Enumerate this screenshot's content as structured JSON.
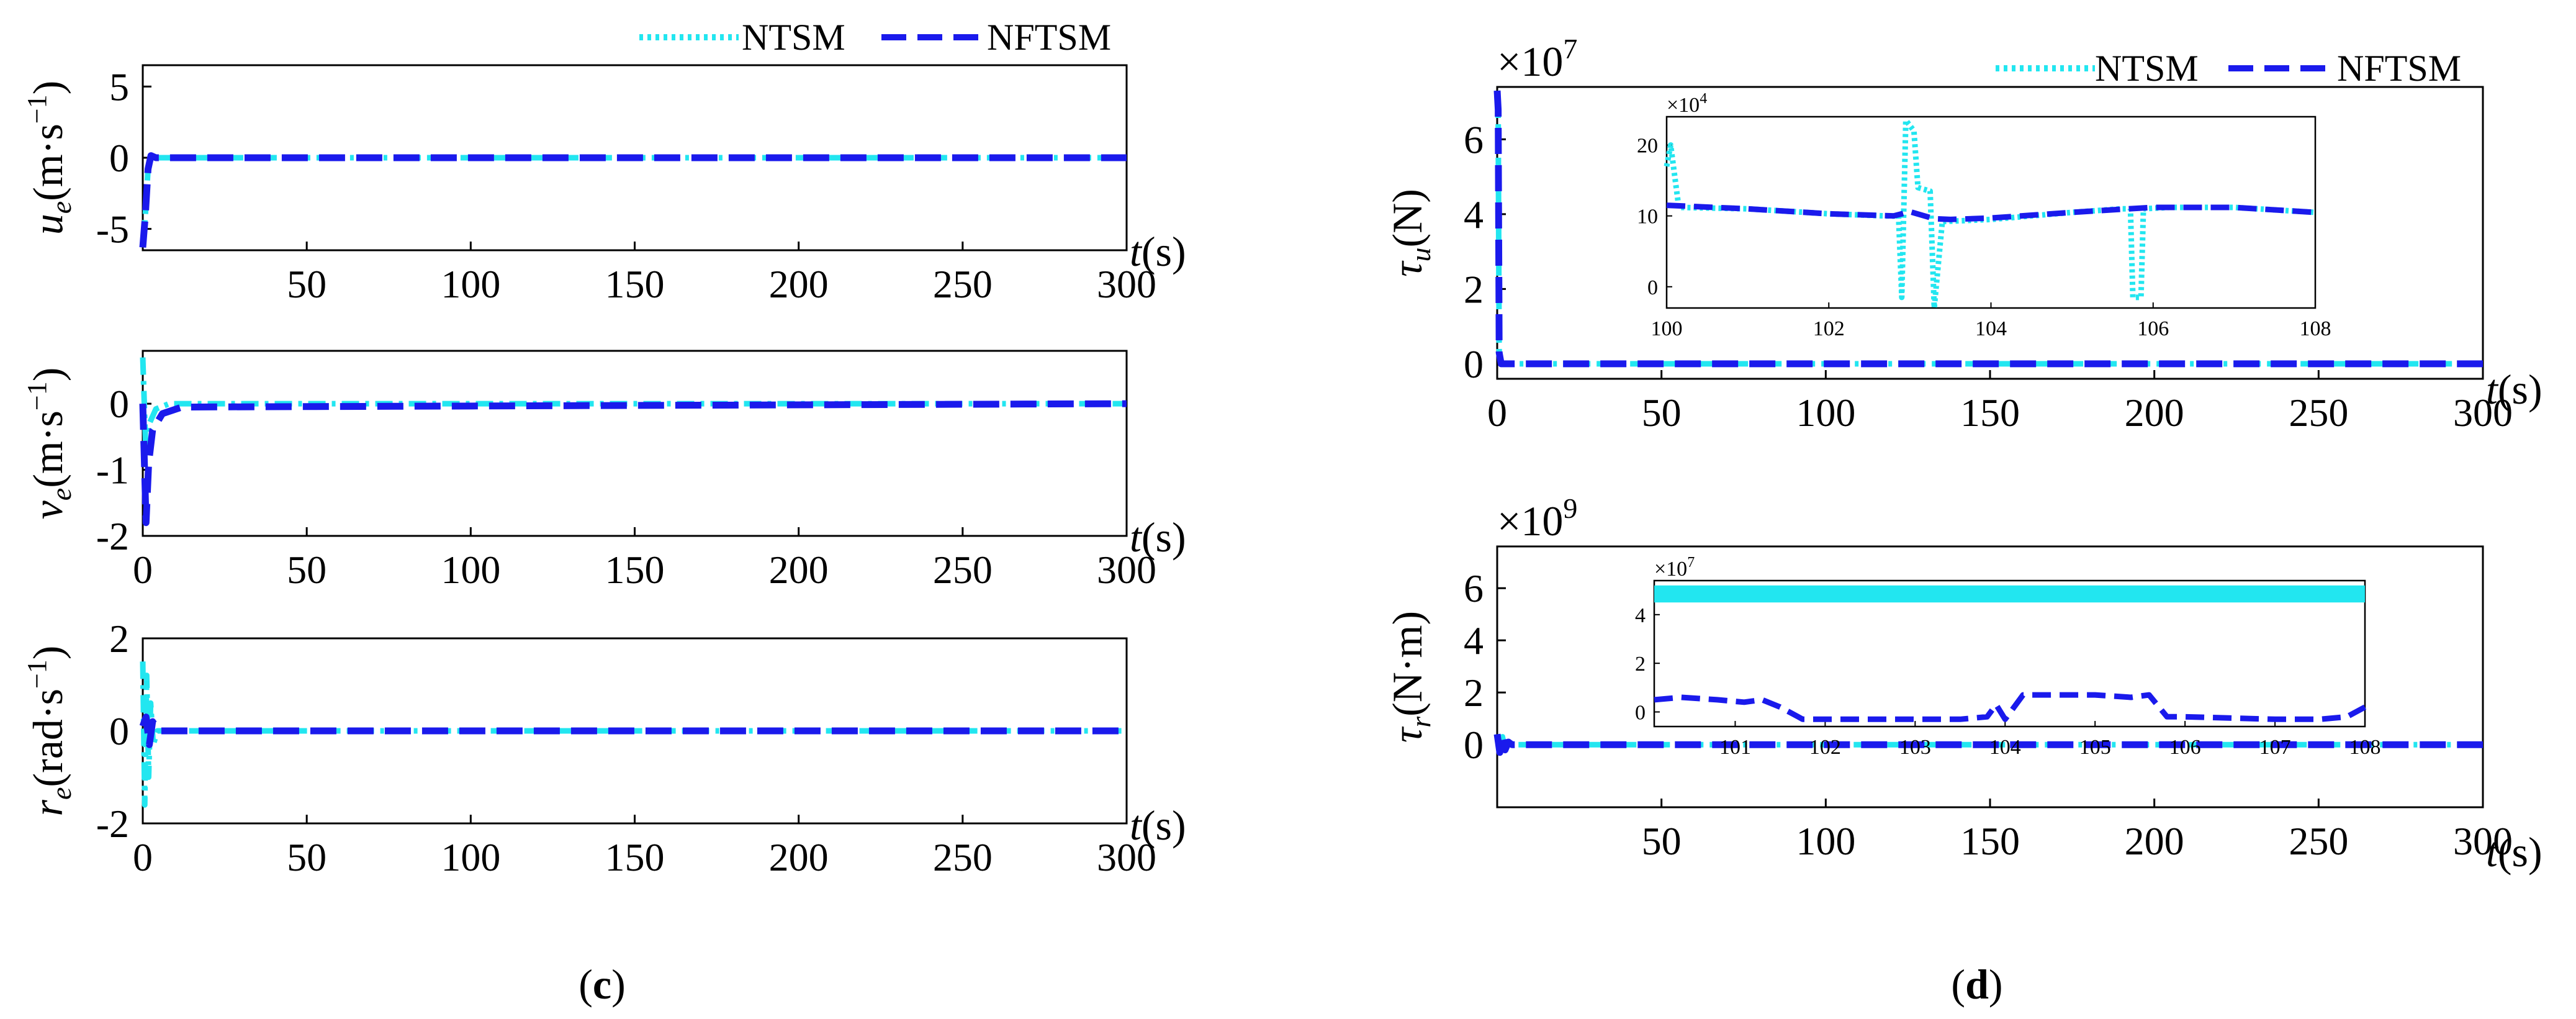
{
  "colors": {
    "ntsm": "#22e6f0",
    "nftsm": "#1a1aec"
  },
  "legend": {
    "ntsm": "NTSM",
    "nftsm": "NFTSM"
  },
  "time_axis_label": {
    "var": "t",
    "unit": "(s)"
  },
  "captions": {
    "c": "c",
    "d": "d"
  },
  "chart_data": [
    {
      "id": "ue",
      "type": "line",
      "panel": "c",
      "ylabel": {
        "sym": "u",
        "sub": "e",
        "unit": "(m·s",
        "exp": "−1",
        "close": ")"
      },
      "xlim": [
        0,
        300
      ],
      "ylim": [
        -6.5,
        6.5
      ],
      "xticks": [
        50,
        100,
        150,
        200,
        250,
        300
      ],
      "yticks": [
        -5,
        0,
        5
      ],
      "ytick_labels": [
        "-5",
        "0",
        "5"
      ],
      "series": [
        {
          "name": "NTSM",
          "style": "dotdash",
          "x": [
            0,
            0.8,
            1.6,
            2.5,
            4,
            300
          ],
          "y": [
            -6.3,
            -4.0,
            -0.8,
            0.15,
            0,
            0
          ]
        },
        {
          "name": "NFTSM",
          "style": "dash",
          "x": [
            0,
            0.8,
            1.6,
            2.5,
            4,
            300
          ],
          "y": [
            -6.3,
            -4.0,
            -0.8,
            0.15,
            0,
            0
          ]
        }
      ]
    },
    {
      "id": "ve",
      "type": "line",
      "panel": "c",
      "ylabel": {
        "sym": "v",
        "sub": "e",
        "unit": "(m·s",
        "exp": "−1",
        "close": ")"
      },
      "xlim": [
        0,
        300
      ],
      "ylim": [
        -2,
        0.8
      ],
      "xticks": [
        0,
        50,
        100,
        150,
        200,
        250,
        300
      ],
      "yticks": [
        -2,
        -1,
        0
      ],
      "ytick_labels": [
        "-2",
        "-1",
        "0"
      ],
      "series": [
        {
          "name": "NTSM",
          "style": "dotdash",
          "x": [
            0,
            1,
            2,
            4,
            8,
            300
          ],
          "y": [
            0.7,
            -0.8,
            -0.3,
            -0.08,
            0,
            0
          ]
        },
        {
          "name": "NFTSM",
          "style": "dash",
          "x": [
            0,
            1,
            1.8,
            3,
            6,
            12,
            300
          ],
          "y": [
            0,
            -1.8,
            -0.9,
            -0.4,
            -0.15,
            -0.05,
            0
          ]
        }
      ]
    },
    {
      "id": "re",
      "type": "line",
      "panel": "c",
      "ylabel": {
        "sym": "r",
        "sub": "e",
        "unit": "(rad·s",
        "exp": "−1",
        "close": ")"
      },
      "xlim": [
        0,
        300
      ],
      "ylim": [
        -2,
        2
      ],
      "xticks": [
        0,
        50,
        100,
        150,
        200,
        250,
        300
      ],
      "yticks": [
        -2,
        0,
        2
      ],
      "ytick_labels": [
        "-2",
        "0",
        "2"
      ],
      "series": [
        {
          "name": "NTSM",
          "style": "dotdash",
          "x": [
            0,
            0.6,
            1.2,
            1.8,
            2.4,
            3.2,
            4.5,
            300
          ],
          "y": [
            1.5,
            -1.6,
            1.2,
            -1.0,
            0.6,
            -0.3,
            0,
            0
          ]
        },
        {
          "name": "NFTSM",
          "style": "dash",
          "x": [
            0,
            1,
            2,
            3,
            5,
            300
          ],
          "y": [
            0.1,
            0.3,
            -0.3,
            0.2,
            0,
            0
          ]
        }
      ]
    },
    {
      "id": "tau_u",
      "type": "line",
      "panel": "d",
      "ylabel": {
        "sym": "τ",
        "sub": "u",
        "unit": "(N)",
        "exp": "",
        "close": ""
      },
      "xlim": [
        0,
        300
      ],
      "ylim": [
        -0.4,
        7.4
      ],
      "multiplier": {
        "base": "×10",
        "exp": "7"
      },
      "xticks": [
        0,
        50,
        100,
        150,
        200,
        250,
        300
      ],
      "yticks": [
        0,
        2,
        4,
        6
      ],
      "ytick_labels": [
        "0",
        "2",
        "4",
        "6"
      ],
      "series": [
        {
          "name": "NTSM",
          "style": "dotdash",
          "x": [
            0,
            0.3,
            0.6,
            1.2,
            300
          ],
          "y": [
            7.3,
            6.8,
            0.3,
            0,
            0
          ]
        },
        {
          "name": "NFTSM",
          "style": "dash",
          "x": [
            0,
            0.3,
            0.6,
            1.2,
            300
          ],
          "y": [
            7.3,
            6.8,
            0.3,
            0,
            0
          ]
        }
      ],
      "inset": {
        "xlim": [
          100,
          108
        ],
        "ylim": [
          -3,
          24
        ],
        "multiplier": {
          "base": "×10",
          "exp": "4"
        },
        "xticks": [
          100,
          102,
          104,
          106,
          108
        ],
        "yticks": [
          0,
          10,
          20
        ],
        "ytick_labels": [
          "0",
          "10",
          "20"
        ],
        "series": [
          {
            "name": "NTSM",
            "style": "dotdash",
            "x": [
              100,
              100.05,
              100.15,
              101,
              102,
              102.7,
              102.86,
              102.9,
              102.95,
              103.05,
              103.1,
              103.25,
              103.3,
              103.4,
              104,
              105,
              105.6,
              105.72,
              105.75,
              105.85,
              105.88,
              106.2,
              107,
              108
            ],
            "y": [
              17,
              20,
              11.2,
              11,
              10.3,
              10.0,
              10.0,
              -1.5,
              23.5,
              22,
              14,
              13.5,
              -3,
              9.2,
              9.5,
              10.5,
              11.0,
              11.0,
              -1.5,
              -1.5,
              11.0,
              11.2,
              11.2,
              10.5
            ]
          },
          {
            "name": "NFTSM",
            "style": "dash",
            "x": [
              100,
              101,
              102,
              102.8,
              103,
              103.3,
              103.5,
              104,
              105,
              105.7,
              106,
              107,
              108
            ],
            "y": [
              11.5,
              11,
              10.3,
              10,
              10.6,
              9.6,
              9.5,
              9.7,
              10.5,
              11,
              11.2,
              11.2,
              10.5
            ]
          }
        ]
      }
    },
    {
      "id": "tau_r",
      "type": "line",
      "panel": "d",
      "ylabel": {
        "sym": "τ",
        "sub": "r",
        "unit": "(N·m)",
        "exp": "",
        "close": ""
      },
      "xlim": [
        0,
        300
      ],
      "ylim": [
        -2.4,
        7.6
      ],
      "multiplier": {
        "base": "×10",
        "exp": "9"
      },
      "xticks": [
        50,
        100,
        150,
        200,
        250,
        300
      ],
      "yticks": [
        0,
        2,
        4,
        6
      ],
      "ytick_labels": [
        "0",
        "2",
        "4",
        "6"
      ],
      "series": [
        {
          "name": "NTSM",
          "style": "dotdash",
          "x": [
            0,
            0.8,
            1.6,
            2.4,
            3.4,
            4.5,
            300
          ],
          "y": [
            0.4,
            -0.3,
            0.3,
            -0.2,
            0.1,
            0,
            0
          ]
        },
        {
          "name": "NFTSM",
          "style": "dash",
          "x": [
            0,
            0.8,
            1.6,
            2.4,
            3.4,
            4.5,
            300
          ],
          "y": [
            0.4,
            -0.3,
            0.3,
            -0.2,
            0.1,
            0,
            0
          ]
        }
      ],
      "inset": {
        "xlim": [
          100.1,
          108
        ],
        "ylim": [
          -0.6,
          5.4
        ],
        "multiplier": {
          "base": "×10",
          "exp": "7"
        },
        "xticks": [
          101,
          102,
          103,
          104,
          105,
          106,
          107,
          108
        ],
        "yticks": [
          0,
          2,
          4
        ],
        "ytick_labels": [
          "0",
          "2",
          "4"
        ],
        "ntsm_band": [
          4.5,
          5.2
        ],
        "series": [
          {
            "name": "NFTSM",
            "style": "dash",
            "x": [
              100.1,
              100.4,
              100.8,
              101.1,
              101.3,
              101.5,
              101.7,
              101.75,
              102,
              103,
              103.5,
              103.8,
              103.9,
              104,
              104.2,
              104.5,
              105,
              105.4,
              105.6,
              105.8,
              106,
              107,
              107.5,
              107.8,
              108
            ],
            "y": [
              0.5,
              0.6,
              0.5,
              0.4,
              0.5,
              0.2,
              -0.2,
              -0.3,
              -0.3,
              -0.3,
              -0.3,
              -0.2,
              0.3,
              -0.3,
              0.7,
              0.7,
              0.7,
              0.6,
              0.7,
              -0.2,
              -0.2,
              -0.3,
              -0.3,
              -0.2,
              0.2
            ]
          }
        ]
      }
    }
  ]
}
